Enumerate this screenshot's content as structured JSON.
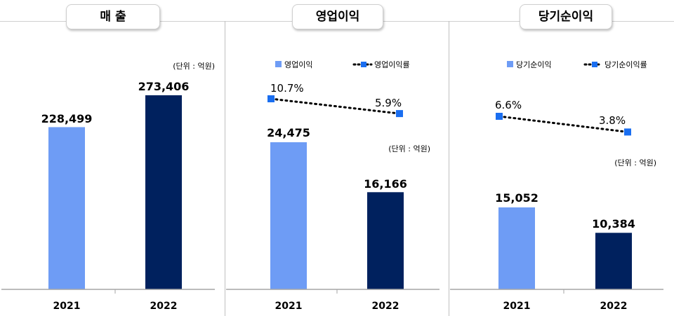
{
  "colors": {
    "bar_2021": "#6e9cf5",
    "bar_2022": "#00215e",
    "marker": "#1a6ef0",
    "axis": "#a6a6a6"
  },
  "chart_data": [
    {
      "type": "bar",
      "title": "매 출",
      "unit": "(단위 : 억원)",
      "categories": [
        "2021",
        "2022"
      ],
      "values": [
        228499,
        273406
      ],
      "value_labels": [
        "228,499",
        "273,406"
      ],
      "ylim": [
        0,
        300000
      ]
    },
    {
      "type": "bar",
      "title": "영업이익",
      "unit": "(단위 : 억원)",
      "categories": [
        "2021",
        "2022"
      ],
      "series": [
        {
          "name": "영업이익",
          "type": "bar",
          "values": [
            24475,
            16166
          ],
          "value_labels": [
            "24,475",
            "16,166"
          ]
        },
        {
          "name": "영업이익률",
          "type": "line",
          "values": [
            10.7,
            5.9
          ],
          "value_labels": [
            "10.7%",
            "5.9%"
          ]
        }
      ],
      "legend": "top"
    },
    {
      "type": "bar",
      "title": "당기순이익",
      "unit": "(단위 : 억원)",
      "categories": [
        "2021",
        "2022"
      ],
      "series": [
        {
          "name": "당기순이익",
          "type": "bar",
          "values": [
            15052,
            10384
          ],
          "value_labels": [
            "15,052",
            "10,384"
          ]
        },
        {
          "name": "당기순이익률",
          "type": "line",
          "values": [
            6.6,
            3.8
          ],
          "value_labels": [
            "6.6%",
            "3.8%"
          ]
        }
      ],
      "legend": "top"
    }
  ]
}
